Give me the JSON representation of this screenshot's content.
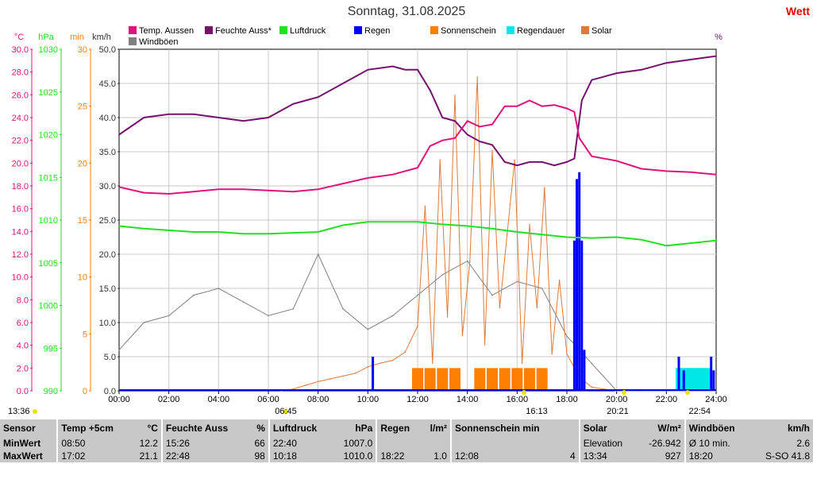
{
  "header": {
    "title": "Sonntag, 31.08.2025",
    "brand": "Wett"
  },
  "colors": {
    "temp": "#e0137a",
    "feuchte": "#76106f",
    "luftdruck": "#22e022",
    "regen": "#0000ff",
    "sonne": "#ff8000",
    "regendauer": "#00e8e8",
    "solar": "#e07a38",
    "wind": "#808080"
  },
  "legend": [
    {
      "label": "Temp. Aussen",
      "color": "#e0137a"
    },
    {
      "label": "Feuchte Auss*",
      "color": "#76106f"
    },
    {
      "label": "Luftdruck",
      "color": "#22e022"
    },
    {
      "label": "Regen",
      "color": "#0000ff"
    },
    {
      "label": "Sonnenschein",
      "color": "#ff8000"
    },
    {
      "label": "Regendauer",
      "color": "#00e8e8"
    },
    {
      "label": "Solar",
      "color": "#e07a38"
    },
    {
      "label": "Windböen",
      "color": "#808080"
    }
  ],
  "axes": {
    "units": [
      "°C",
      "hPa",
      "min",
      "km/h",
      "%"
    ],
    "temp_ticks": [
      "30.0",
      "28.0",
      "26.0",
      "24.0",
      "22.0",
      "20.0",
      "18.0",
      "16.0",
      "14.0",
      "12.0",
      "10.0",
      "8.0",
      "6.0",
      "4.0",
      "2.0",
      "0.0"
    ],
    "hpa_ticks": [
      "1030",
      "1025",
      "1020",
      "1015",
      "1010",
      "1005",
      "1000",
      "995",
      "990"
    ],
    "min_ticks": [
      "30",
      "25",
      "20",
      "15",
      "10",
      "5",
      "0"
    ],
    "kmh_ticks": [
      "50.0",
      "45.0",
      "40.0",
      "35.0",
      "30.0",
      "25.0",
      "20.0",
      "15.0",
      "10.0",
      "5.0",
      "0.0"
    ],
    "x_ticks": [
      "00:00",
      "02:00",
      "04:00",
      "06:00",
      "08:00",
      "10:00",
      "12:00",
      "14:00",
      "16:00",
      "18:00",
      "20:00",
      "22:00",
      "24:00"
    ]
  },
  "sun_events": [
    {
      "label": "13:36"
    },
    {
      "label": "06:45"
    },
    {
      "label": "16:13"
    },
    {
      "label": "20:21"
    },
    {
      "label": "22:54"
    }
  ],
  "chart_data": {
    "type": "line",
    "title": "Sonntag, 31.08.2025",
    "x_range": [
      "00:00",
      "24:00"
    ],
    "grid": true,
    "legend_position": "top",
    "series": [
      {
        "name": "Temp. Aussen",
        "unit": "°C",
        "x": [
          0,
          1,
          2,
          3,
          4,
          5,
          6,
          7,
          8,
          9,
          10,
          11,
          12,
          12.5,
          13,
          13.5,
          14,
          14.5,
          15,
          15.5,
          16,
          16.5,
          17,
          17.5,
          18,
          18.3,
          18.5,
          19,
          20,
          21,
          22,
          23,
          24
        ],
        "values": [
          17.9,
          17.4,
          17.3,
          17.5,
          17.7,
          17.7,
          17.6,
          17.5,
          17.7,
          18.2,
          18.7,
          19.0,
          19.6,
          21.5,
          22.0,
          22.2,
          23.7,
          23.2,
          23.4,
          25.0,
          25.0,
          25.5,
          25.0,
          25.1,
          24.8,
          24.5,
          22.2,
          20.6,
          20.2,
          19.5,
          19.3,
          19.2,
          19.0
        ]
      },
      {
        "name": "Feuchte Auss*",
        "unit": "%",
        "ymax": 100,
        "x": [
          0,
          1,
          2,
          3,
          4,
          5,
          6,
          7,
          8,
          9,
          10,
          11,
          11.5,
          12,
          12.5,
          13,
          13.5,
          14,
          14.5,
          15,
          15.5,
          16,
          16.5,
          17,
          17.5,
          18,
          18.3,
          18.6,
          19,
          20,
          21,
          22,
          23,
          24
        ],
        "values": [
          75,
          80,
          81,
          81,
          80,
          79,
          80,
          84,
          86,
          90,
          94,
          95,
          94,
          94,
          88,
          80,
          79,
          75,
          73,
          72,
          67,
          66,
          67,
          67,
          66,
          67,
          68,
          85,
          91,
          93,
          94,
          96,
          97,
          98
        ]
      },
      {
        "name": "Luftdruck",
        "unit": "hPa",
        "x": [
          0,
          1,
          2,
          3,
          4,
          5,
          6,
          7,
          8,
          9,
          10,
          11,
          12,
          13,
          14,
          15,
          16,
          17,
          18,
          19,
          20,
          21,
          22,
          23,
          24
        ],
        "values": [
          1009.3,
          1009.0,
          1008.8,
          1008.6,
          1008.6,
          1008.4,
          1008.4,
          1008.5,
          1008.6,
          1009.4,
          1009.8,
          1009.8,
          1009.8,
          1009.5,
          1009.3,
          1009.0,
          1008.6,
          1008.3,
          1008.0,
          1007.9,
          1008.0,
          1007.7,
          1007.0,
          1007.3,
          1007.6
        ]
      },
      {
        "name": "Regen",
        "unit": "l/m²",
        "x": [
          10.2,
          18.3,
          18.4,
          18.5,
          18.6,
          18.7,
          22.5,
          22.7,
          23.8,
          23.9
        ],
        "values": [
          5,
          22,
          31,
          32,
          22,
          6,
          5,
          3,
          5,
          3
        ]
      },
      {
        "name": "Sonnenschein",
        "unit": "min",
        "x": [
          12,
          12.5,
          13,
          13.5,
          14,
          14.5,
          15,
          15.5,
          16,
          16.5,
          17,
          17.5
        ],
        "values": [
          2,
          2,
          2,
          2,
          0,
          2,
          2,
          2,
          2,
          2,
          2,
          0
        ]
      },
      {
        "name": "Regendauer",
        "unit": "min",
        "x": [
          22.6,
          22.8,
          23,
          23.2,
          23.4,
          23.6
        ],
        "values": [
          2,
          2,
          2,
          2,
          2,
          2
        ]
      },
      {
        "name": "Solar",
        "unit": "W/m²",
        "x": [
          6.5,
          7,
          7.5,
          8,
          8.5,
          9,
          9.5,
          10,
          10.5,
          11,
          11.5,
          12,
          12.3,
          12.6,
          12.9,
          13.2,
          13.5,
          13.8,
          14.1,
          14.4,
          14.7,
          15,
          15.3,
          15.6,
          15.9,
          16.2,
          16.5,
          16.8,
          17.1,
          17.4,
          17.7,
          18,
          18.5,
          19,
          20
        ],
        "values": [
          0,
          20,
          60,
          100,
          130,
          160,
          190,
          260,
          300,
          330,
          420,
          700,
          2000,
          300,
          2500,
          800,
          3200,
          600,
          1400,
          3400,
          500,
          2600,
          900,
          1700,
          2500,
          300,
          1800,
          900,
          2200,
          400,
          1200,
          400,
          150,
          40,
          0
        ]
      },
      {
        "name": "Windböen",
        "unit": "km/h",
        "x": [
          0,
          1,
          2,
          3,
          4,
          5,
          6,
          7,
          8,
          9,
          10,
          11,
          12,
          13,
          14,
          15,
          16,
          17,
          18,
          19,
          20,
          21,
          22,
          23,
          24
        ],
        "values": [
          6,
          10,
          11,
          14,
          15,
          13,
          11,
          12,
          20,
          12,
          9,
          11,
          14,
          17,
          19,
          14,
          16,
          15,
          8,
          4,
          0,
          0,
          0,
          0,
          0
        ]
      }
    ]
  },
  "stats": {
    "columns": [
      {
        "h1": "Sensor",
        "h2": ""
      },
      {
        "h1": "Temp +5cm",
        "h2": "°C"
      },
      {
        "h1": "Feuchte Auss",
        "h2": "%"
      },
      {
        "h1": "Luftdruck",
        "h2": "hPa"
      },
      {
        "h1": "Regen",
        "h2": "l/m²"
      },
      {
        "h1": "Sonnenschein min",
        "h2": ""
      },
      {
        "h1": "Solar",
        "h2": "W/m²"
      },
      {
        "h1": "Windböen",
        "h2": "km/h"
      }
    ],
    "rows": [
      {
        "label": "MinWert",
        "cells": [
          [
            "08:50",
            "12.2"
          ],
          [
            "15:26",
            "66"
          ],
          [
            "22:40",
            "1007.0"
          ],
          [
            "",
            ""
          ],
          [
            "",
            ""
          ],
          [
            "Elevation",
            "-26.942"
          ],
          [
            "Ø 10 min.",
            "2.6"
          ]
        ]
      },
      {
        "label": "MaxWert",
        "cells": [
          [
            "17:02",
            "21.1"
          ],
          [
            "22:48",
            "98"
          ],
          [
            "10:18",
            "1010.0"
          ],
          [
            "18:22",
            "1.0"
          ],
          [
            "12:08",
            "4"
          ],
          [
            "13:34",
            "927"
          ],
          [
            "18:20",
            "S-SO 41.8"
          ]
        ]
      }
    ]
  }
}
